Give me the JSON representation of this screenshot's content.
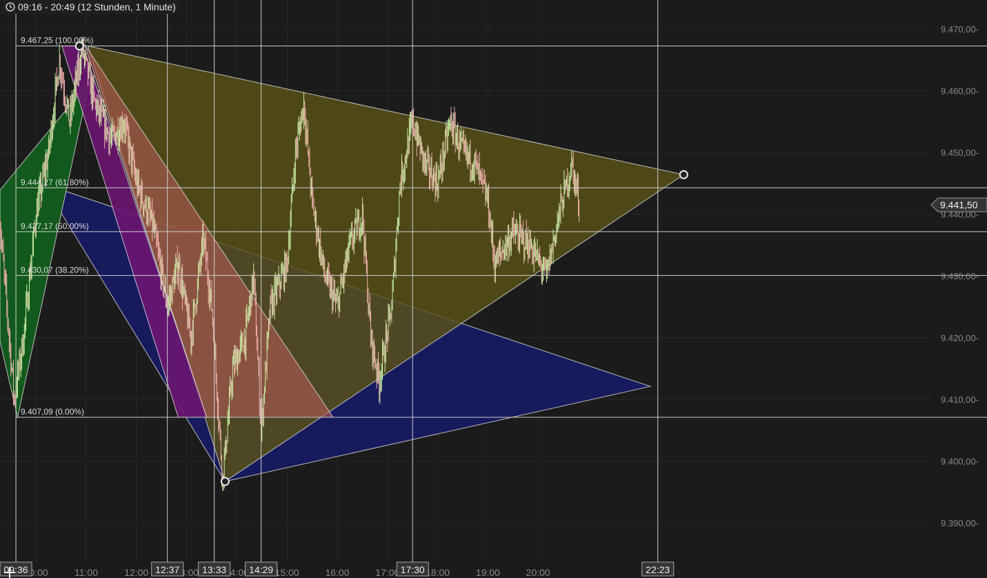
{
  "header": {
    "title": "09:16 - 20:49 (12 Stunden, 1 Minute)",
    "icon": "clock-icon"
  },
  "current_price_label": "9.441,50",
  "colors": {
    "candle_up": "#c9f0a4",
    "candle_down": "#f2b2b0",
    "grid_major": "#cfcfcf",
    "grid_minor": "#272727",
    "green": "#12591d",
    "purple": "#6b1671",
    "violet": "#47148a",
    "salmon": "#b35a55",
    "olive": "#5a5218",
    "blue": "#171a5c"
  },
  "chart_data": {
    "type": "candlestick",
    "interval": "1 Minute",
    "x_range": [
      "09:16",
      "20:49"
    ],
    "ylim": [
      9388,
      9474
    ],
    "y_ticks": [
      {
        "value": 9470,
        "label": "9.470,00-"
      },
      {
        "value": 9460,
        "label": "9.460,00-"
      },
      {
        "value": 9450,
        "label": "9.450,00-"
      },
      {
        "value": 9440,
        "label": "9.440,00-"
      },
      {
        "value": 9430,
        "label": "9.430,00-"
      },
      {
        "value": 9420,
        "label": "9.420,00-"
      },
      {
        "value": 9410,
        "label": "9.410,00-"
      },
      {
        "value": 9400,
        "label": "9.400,00-"
      },
      {
        "value": 9390,
        "label": "9.390,00-"
      }
    ],
    "x_ticks": [
      {
        "time": "10:00",
        "label": "10:00"
      },
      {
        "time": "11:00",
        "label": "11:00"
      },
      {
        "time": "12:00",
        "label": "12:00"
      },
      {
        "time": "13:00",
        "label": "13:00"
      },
      {
        "time": "14:00",
        "label": "14:00"
      },
      {
        "time": "15:00",
        "label": "15:00"
      },
      {
        "time": "16:00",
        "label": "16:00"
      },
      {
        "time": "17:00",
        "label": "17:00"
      },
      {
        "time": "18:00",
        "label": "18:00"
      },
      {
        "time": "19:00",
        "label": "19:00"
      },
      {
        "time": "20:00",
        "label": "20:00"
      }
    ],
    "time_markers": [
      "09:36",
      "12:37",
      "13:33",
      "14:29",
      "17:30",
      "22:23"
    ],
    "fibonacci_levels": [
      {
        "price": 9467.25,
        "label": "9.467,25 (100.00%)"
      },
      {
        "price": 9444.27,
        "label": "9.444,27 (61.80%)"
      },
      {
        "price": 9437.17,
        "label": "9.437,17 (50.00%)"
      },
      {
        "price": 9430.07,
        "label": "9.430,07 (38.20%)"
      },
      {
        "price": 9407.09,
        "label": "9.407,09 (0.00%)"
      }
    ],
    "last_price": 9441.5,
    "price_path": [
      [
        "09:16",
        9440
      ],
      [
        "09:25",
        9425
      ],
      [
        "09:34",
        9410
      ],
      [
        "09:45",
        9420
      ],
      [
        "10:00",
        9440
      ],
      [
        "10:15",
        9450
      ],
      [
        "10:28",
        9465
      ],
      [
        "10:40",
        9455
      ],
      [
        "10:55",
        9467
      ],
      [
        "11:10",
        9458
      ],
      [
        "11:30",
        9452
      ],
      [
        "11:45",
        9455
      ],
      [
        "12:00",
        9445
      ],
      [
        "12:20",
        9438
      ],
      [
        "12:37",
        9425
      ],
      [
        "12:50",
        9432
      ],
      [
        "13:05",
        9420
      ],
      [
        "13:20",
        9436
      ],
      [
        "13:30",
        9425
      ],
      [
        "13:43",
        9397
      ],
      [
        "13:55",
        9415
      ],
      [
        "14:10",
        9420
      ],
      [
        "14:20",
        9430
      ],
      [
        "14:29",
        9405
      ],
      [
        "14:40",
        9425
      ],
      [
        "15:00",
        9432
      ],
      [
        "15:10",
        9450
      ],
      [
        "15:20",
        9458
      ],
      [
        "15:30",
        9442
      ],
      [
        "15:45",
        9430
      ],
      [
        "16:00",
        9425
      ],
      [
        "16:15",
        9435
      ],
      [
        "16:30",
        9440
      ],
      [
        "16:40",
        9420
      ],
      [
        "16:50",
        9413
      ],
      [
        "17:05",
        9425
      ],
      [
        "17:15",
        9445
      ],
      [
        "17:30",
        9455
      ],
      [
        "17:45",
        9448
      ],
      [
        "18:00",
        9445
      ],
      [
        "18:15",
        9455
      ],
      [
        "18:30",
        9450
      ],
      [
        "18:45",
        9448
      ],
      [
        "19:00",
        9442
      ],
      [
        "19:08",
        9432
      ],
      [
        "19:30",
        9437
      ],
      [
        "19:50",
        9435
      ],
      [
        "20:10",
        9430
      ],
      [
        "20:25",
        9440
      ],
      [
        "20:40",
        9448
      ],
      [
        "20:49",
        9442
      ]
    ],
    "drawings": [
      {
        "name": "blue-triangle",
        "color": "blue",
        "points": [
          [
            "10:09",
            9444.9
          ],
          [
            "22:14",
            9412.1
          ],
          [
            "13:46",
            9396.7
          ]
        ]
      },
      {
        "name": "green-pattern",
        "color": "green",
        "points": [
          [
            "09:17",
            9443.9
          ],
          [
            "11:04",
            9461.5
          ],
          [
            "09:38",
            9407.09
          ],
          [
            "09:17",
            9419.4
          ]
        ]
      },
      {
        "name": "olive-triangle",
        "color": "olive",
        "points": [
          [
            "11:02",
            9467.25
          ],
          [
            "22:54",
            9446.4
          ],
          [
            "13:46",
            9396.7
          ]
        ]
      },
      {
        "name": "purple-triangle",
        "color": "purple",
        "points": [
          [
            "10:31",
            9467.25
          ],
          [
            "10:56",
            9467.25
          ],
          [
            "13:24",
            9407.09
          ],
          [
            "12:50",
            9407.09
          ]
        ]
      },
      {
        "name": "salmon-triangle",
        "color": "salmon",
        "points": [
          [
            "10:58",
            9467.5
          ],
          [
            "15:55",
            9407.09
          ],
          [
            "13:24",
            9407.09
          ]
        ]
      }
    ],
    "handles": [
      [
        "10:52",
        9467.25
      ],
      [
        "13:46",
        9396.7
      ],
      [
        "22:54",
        9446.4
      ]
    ]
  }
}
